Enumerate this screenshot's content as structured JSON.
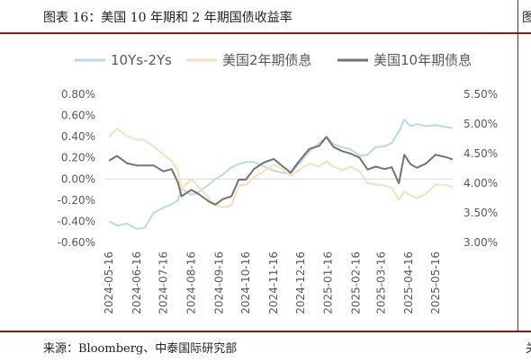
{
  "header": {
    "title": "图表 16：美国 10 年期和 2 年期国债收益率",
    "right_fragment": "图"
  },
  "footer": {
    "source": "来源：Bloomberg、中泰国际研究部",
    "right_fragment": "关"
  },
  "colors": {
    "spread": "#bdd7ee",
    "us2y": "#f8dfb8",
    "us10y": "#737373",
    "rule": "#8b1a1a"
  },
  "chart_data": {
    "type": "line",
    "legend_position": "top",
    "x_tick_labels": [
      "2024-05-16",
      "2024-06-16",
      "2024-07-16",
      "2024-08-16",
      "2024-09-16",
      "2024-10-16",
      "2024-11-16",
      "2024-12-16",
      "2025-01-16",
      "2025-02-16",
      "2025-03-16",
      "2025-04-16",
      "2025-05-16"
    ],
    "y_left": {
      "ticks": [
        "0.80%",
        "0.60%",
        "0.40%",
        "0.20%",
        "0.00%",
        "-0.20%",
        "-0.40%",
        "-0.60%"
      ],
      "range": [
        -0.6,
        0.8
      ]
    },
    "y_right": {
      "ticks": [
        "5.50%",
        "5.00%",
        "4.50%",
        "4.00%",
        "3.50%",
        "3.00%"
      ],
      "range": [
        3.0,
        5.5
      ]
    },
    "series": [
      {
        "name": "10Ys-2Ys",
        "axis": "left",
        "color": "#bdd7ee",
        "points": [
          [
            "2024-05-16",
            -0.4
          ],
          [
            "2024-05-25",
            -0.44
          ],
          [
            "2024-06-05",
            -0.42
          ],
          [
            "2024-06-16",
            -0.47
          ],
          [
            "2024-06-25",
            -0.46
          ],
          [
            "2024-07-05",
            -0.32
          ],
          [
            "2024-07-16",
            -0.27
          ],
          [
            "2024-07-25",
            -0.24
          ],
          [
            "2024-08-01",
            -0.2
          ],
          [
            "2024-08-05",
            -0.09
          ],
          [
            "2024-08-16",
            -0.15
          ],
          [
            "2024-08-25",
            -0.12
          ],
          [
            "2024-09-05",
            -0.05
          ],
          [
            "2024-09-12",
            0.0
          ],
          [
            "2024-09-20",
            0.04
          ],
          [
            "2024-09-30",
            0.11
          ],
          [
            "2024-10-08",
            0.14
          ],
          [
            "2024-10-16",
            0.16
          ],
          [
            "2024-10-25",
            0.16
          ],
          [
            "2024-11-05",
            0.12
          ],
          [
            "2024-11-16",
            0.08
          ],
          [
            "2024-11-25",
            0.06
          ],
          [
            "2024-12-05",
            0.05
          ],
          [
            "2024-12-16",
            0.16
          ],
          [
            "2024-12-26",
            0.26
          ],
          [
            "2025-01-06",
            0.34
          ],
          [
            "2025-01-14",
            0.4
          ],
          [
            "2025-01-22",
            0.33
          ],
          [
            "2025-02-01",
            0.3
          ],
          [
            "2025-02-10",
            0.28
          ],
          [
            "2025-02-20",
            0.22
          ],
          [
            "2025-03-01",
            0.23
          ],
          [
            "2025-03-10",
            0.3
          ],
          [
            "2025-03-20",
            0.31
          ],
          [
            "2025-03-28",
            0.34
          ],
          [
            "2025-04-05",
            0.45
          ],
          [
            "2025-04-11",
            0.56
          ],
          [
            "2025-04-18",
            0.5
          ],
          [
            "2025-04-25",
            0.52
          ],
          [
            "2025-05-05",
            0.5
          ],
          [
            "2025-05-16",
            0.51
          ],
          [
            "2025-05-28",
            0.49
          ],
          [
            "2025-06-04",
            0.48
          ]
        ]
      },
      {
        "name": "美国2年期债息",
        "axis": "right",
        "color": "#f8dfb8",
        "points": [
          [
            "2024-05-16",
            4.78
          ],
          [
            "2024-05-25",
            4.92
          ],
          [
            "2024-06-05",
            4.8
          ],
          [
            "2024-06-16",
            4.74
          ],
          [
            "2024-06-25",
            4.73
          ],
          [
            "2024-07-05",
            4.62
          ],
          [
            "2024-07-16",
            4.48
          ],
          [
            "2024-07-25",
            4.38
          ],
          [
            "2024-08-01",
            4.22
          ],
          [
            "2024-08-05",
            3.9
          ],
          [
            "2024-08-16",
            4.07
          ],
          [
            "2024-08-25",
            3.93
          ],
          [
            "2024-09-05",
            3.74
          ],
          [
            "2024-09-12",
            3.64
          ],
          [
            "2024-09-20",
            3.59
          ],
          [
            "2024-09-30",
            3.63
          ],
          [
            "2024-10-08",
            3.97
          ],
          [
            "2024-10-16",
            3.97
          ],
          [
            "2024-10-25",
            4.1
          ],
          [
            "2024-11-05",
            4.2
          ],
          [
            "2024-11-16",
            4.31
          ],
          [
            "2024-11-25",
            4.25
          ],
          [
            "2024-12-05",
            4.12
          ],
          [
            "2024-12-16",
            4.24
          ],
          [
            "2024-12-26",
            4.33
          ],
          [
            "2025-01-06",
            4.28
          ],
          [
            "2025-01-14",
            4.37
          ],
          [
            "2025-01-22",
            4.28
          ],
          [
            "2025-02-01",
            4.22
          ],
          [
            "2025-02-10",
            4.28
          ],
          [
            "2025-02-20",
            4.2
          ],
          [
            "2025-03-01",
            4.0
          ],
          [
            "2025-03-10",
            3.98
          ],
          [
            "2025-03-20",
            3.96
          ],
          [
            "2025-03-28",
            3.92
          ],
          [
            "2025-04-05",
            3.72
          ],
          [
            "2025-04-11",
            3.86
          ],
          [
            "2025-04-18",
            3.8
          ],
          [
            "2025-04-25",
            3.75
          ],
          [
            "2025-05-05",
            3.82
          ],
          [
            "2025-05-16",
            3.98
          ],
          [
            "2025-05-28",
            3.97
          ],
          [
            "2025-06-04",
            3.93
          ]
        ]
      },
      {
        "name": "美国10年期债息",
        "axis": "right",
        "color": "#737373",
        "points": [
          [
            "2024-05-16",
            4.38
          ],
          [
            "2024-05-25",
            4.46
          ],
          [
            "2024-06-05",
            4.34
          ],
          [
            "2024-06-16",
            4.3
          ],
          [
            "2024-06-25",
            4.3
          ],
          [
            "2024-07-05",
            4.3
          ],
          [
            "2024-07-16",
            4.2
          ],
          [
            "2024-07-25",
            4.24
          ],
          [
            "2024-08-01",
            4.02
          ],
          [
            "2024-08-05",
            3.78
          ],
          [
            "2024-08-16",
            3.89
          ],
          [
            "2024-08-25",
            3.81
          ],
          [
            "2024-09-05",
            3.69
          ],
          [
            "2024-09-12",
            3.64
          ],
          [
            "2024-09-20",
            3.73
          ],
          [
            "2024-09-30",
            3.78
          ],
          [
            "2024-10-08",
            4.06
          ],
          [
            "2024-10-16",
            4.06
          ],
          [
            "2024-10-25",
            4.24
          ],
          [
            "2024-11-05",
            4.35
          ],
          [
            "2024-11-16",
            4.41
          ],
          [
            "2024-11-25",
            4.3
          ],
          [
            "2024-12-05",
            4.18
          ],
          [
            "2024-12-16",
            4.4
          ],
          [
            "2024-12-26",
            4.58
          ],
          [
            "2025-01-06",
            4.63
          ],
          [
            "2025-01-14",
            4.78
          ],
          [
            "2025-01-22",
            4.61
          ],
          [
            "2025-02-01",
            4.54
          ],
          [
            "2025-02-10",
            4.5
          ],
          [
            "2025-02-20",
            4.43
          ],
          [
            "2025-03-01",
            4.23
          ],
          [
            "2025-03-10",
            4.28
          ],
          [
            "2025-03-20",
            4.24
          ],
          [
            "2025-03-28",
            4.27
          ],
          [
            "2025-04-05",
            4.0
          ],
          [
            "2025-04-11",
            4.48
          ],
          [
            "2025-04-18",
            4.32
          ],
          [
            "2025-04-25",
            4.26
          ],
          [
            "2025-05-05",
            4.33
          ],
          [
            "2025-05-16",
            4.48
          ],
          [
            "2025-05-28",
            4.44
          ],
          [
            "2025-06-04",
            4.4
          ]
        ]
      }
    ]
  }
}
